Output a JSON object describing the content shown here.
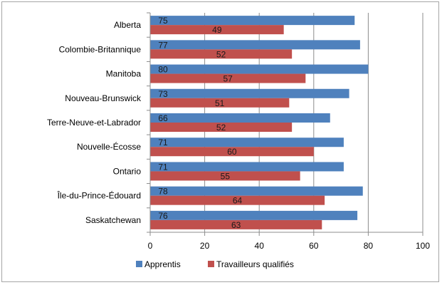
{
  "chart_data": {
    "type": "bar",
    "orientation": "horizontal",
    "categories": [
      "Alberta",
      "Colombie-Britannique",
      "Manitoba",
      "Nouveau-Brunswick",
      "Terre-Neuve-et-Labrador",
      "Nouvelle-Écosse",
      "Ontario",
      "Île-du-Prince-Édouard",
      "Saskatchewan"
    ],
    "series": [
      {
        "name": "Apprentis",
        "color": "#4f81bd",
        "values": [
          75,
          77,
          80,
          73,
          66,
          71,
          71,
          78,
          76
        ]
      },
      {
        "name": "Travailleurs qualifiés",
        "color": "#c0504d",
        "values": [
          49,
          52,
          57,
          51,
          52,
          60,
          55,
          64,
          63
        ]
      }
    ],
    "xlim": [
      0,
      100
    ],
    "xticks": [
      "0",
      "20",
      "40",
      "60",
      "80",
      "100"
    ],
    "grid": "vertical",
    "legend_position": "bottom",
    "title": "",
    "xlabel": "",
    "ylabel": ""
  }
}
